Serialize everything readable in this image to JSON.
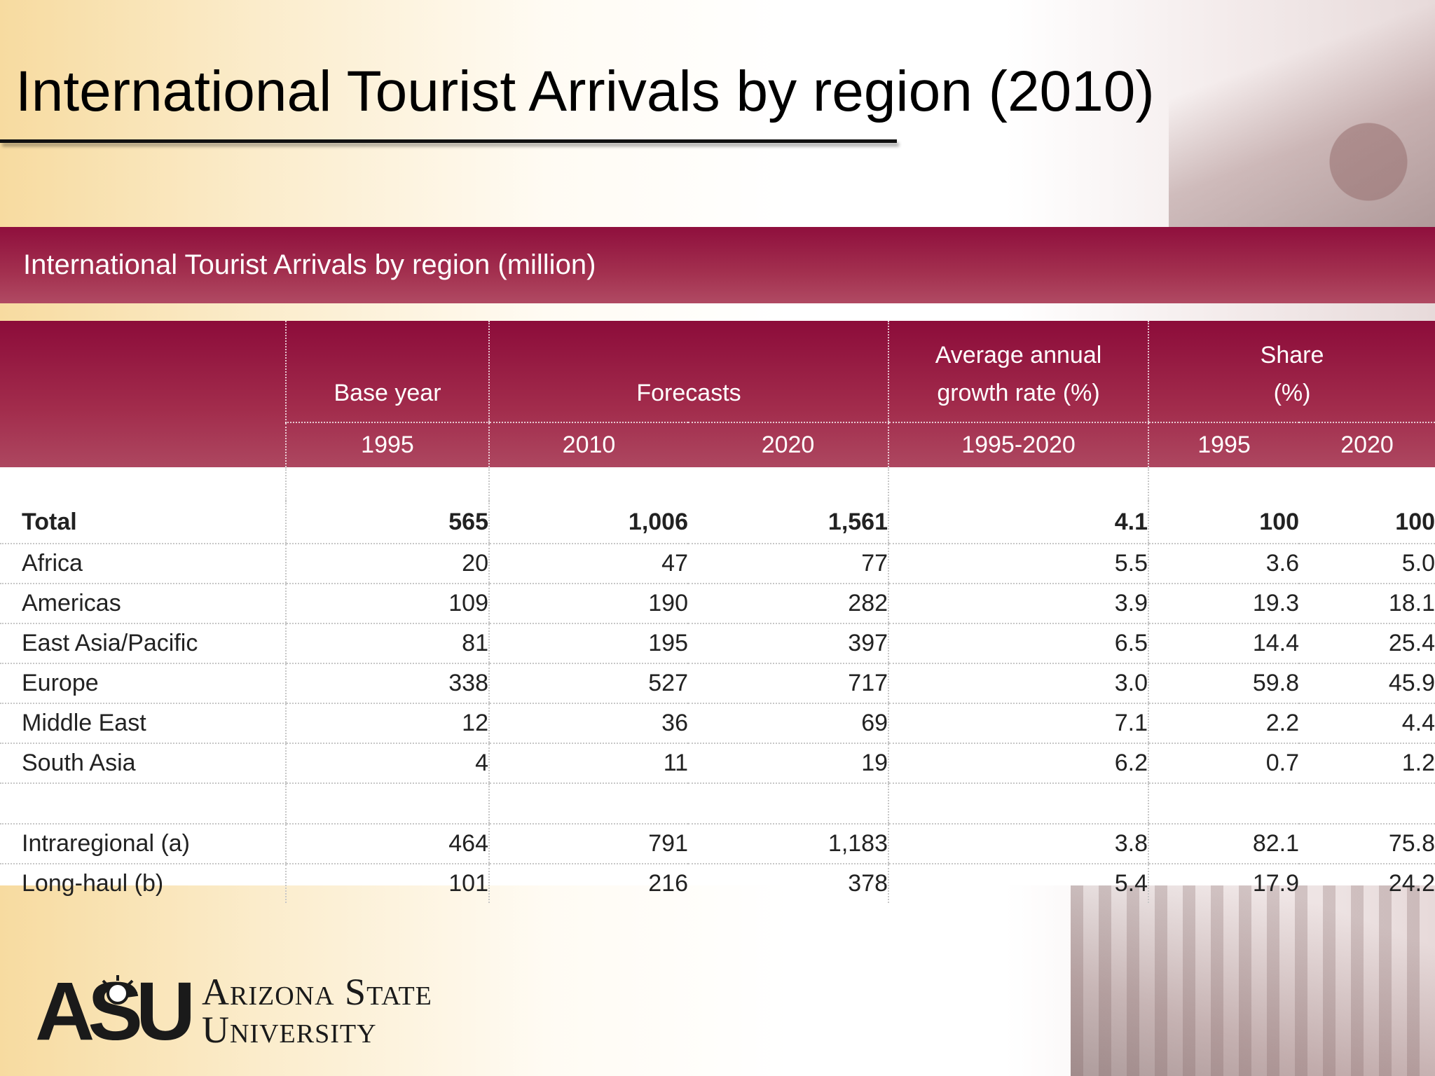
{
  "slide": {
    "title": "International Tourist Arrivals by region (2010)"
  },
  "table": {
    "caption": "International Tourist Arrivals by region (million)",
    "header": {
      "base_year": "Base year",
      "forecasts": "Forecasts",
      "growth_line1": "Average annual",
      "growth_line2": "growth rate (%)",
      "share_line1": "Share",
      "share_line2": "(%)",
      "sub": [
        "1995",
        "2010",
        "2020",
        "1995-2020",
        "1995",
        "2020"
      ]
    },
    "total": {
      "region": "Total",
      "y1995": "565",
      "y2010": "1,006",
      "y2020": "1,561",
      "growth": "4.1",
      "share1995": "100",
      "share2020": "100"
    },
    "regions": [
      {
        "region": "Africa",
        "y1995": "20",
        "y2010": "47",
        "y2020": "77",
        "growth": "5.5",
        "share1995": "3.6",
        "share2020": "5.0"
      },
      {
        "region": "Americas",
        "y1995": "109",
        "y2010": "190",
        "y2020": "282",
        "growth": "3.9",
        "share1995": "19.3",
        "share2020": "18.1"
      },
      {
        "region": "East Asia/Pacific",
        "y1995": "81",
        "y2010": "195",
        "y2020": "397",
        "growth": "6.5",
        "share1995": "14.4",
        "share2020": "25.4"
      },
      {
        "region": "Europe",
        "y1995": "338",
        "y2010": "527",
        "y2020": "717",
        "growth": "3.0",
        "share1995": "59.8",
        "share2020": "45.9"
      },
      {
        "region": "Middle East",
        "y1995": "12",
        "y2010": "36",
        "y2020": "69",
        "growth": "7.1",
        "share1995": "2.2",
        "share2020": "4.4"
      },
      {
        "region": "South Asia",
        "y1995": "4",
        "y2010": "11",
        "y2020": "19",
        "growth": "6.2",
        "share1995": "0.7",
        "share2020": "1.2"
      }
    ],
    "flows": [
      {
        "region": "Intraregional (a)",
        "y1995": "464",
        "y2010": "791",
        "y2020": "1,183",
        "growth": "3.8",
        "share1995": "82.1",
        "share2020": "75.8"
      },
      {
        "region": "Long-haul (b)",
        "y1995": "101",
        "y2010": "216",
        "y2020": "378",
        "growth": "5.4",
        "share1995": "17.9",
        "share2020": "24.2"
      }
    ]
  },
  "logo": {
    "mark": "ASU",
    "line1": "Arizona State",
    "line2": "University"
  },
  "colors": {
    "header_bar": "#8f0f3d",
    "background_gold": "#f7dba0"
  }
}
